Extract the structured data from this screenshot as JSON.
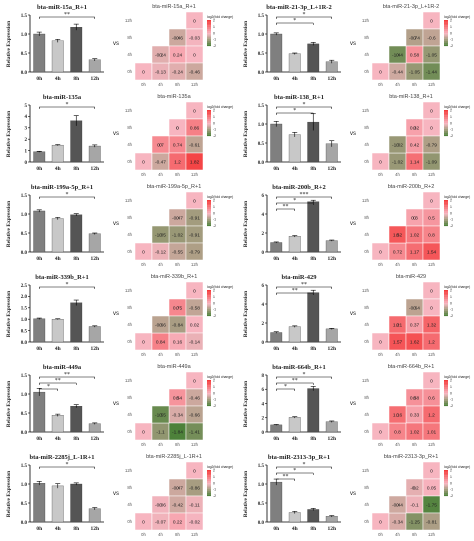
{
  "vs_label": "vs",
  "heat_x_labels": [
    "0h",
    "4h",
    "8h",
    "12h"
  ],
  "heat_y_labels": [
    "12h",
    "8h",
    "4h",
    "0h"
  ],
  "legend_title": "log2(fold change)",
  "legend_ticks": [
    "2",
    "1",
    "0",
    "-1",
    "-2"
  ],
  "colors": {
    "bar_0h": "#7f7f7f",
    "bar_4h": "#c8c8c8",
    "bar_8h": "#555555",
    "bar_12h": "#a6a6a6",
    "heat_pos": "#f43a3a",
    "heat_neg": "#3e7d2e",
    "heat_zero": "#f7b5c0"
  },
  "chart_data": [
    {
      "type": "bar",
      "title": "bta-miR-15a_R+1",
      "categories": [
        "0h",
        "4h",
        "8h",
        "12h"
      ],
      "values": [
        1.0,
        0.82,
        1.18,
        0.32
      ],
      "errors": [
        0.05,
        0.04,
        0.08,
        0.03
      ],
      "ylabel": "Relative Expression",
      "ylim": [
        0.0,
        1.5
      ],
      "yticks": [
        "0.0",
        "0.5",
        "1.0",
        "1.5"
      ],
      "sig": [
        "**"
      ],
      "heatmap": {
        "title": "bta-miR-15a_R+1",
        "cells": [
          [
            -0.46,
            -0.03,
            0.24
          ],
          [
            0.0,
            -0.13,
            -0.24
          ],
          [
            -0.46,
            -0.24
          ]
        ]
      }
    },
    {
      "type": "bar",
      "title": "bta-miR-21-3p_L+1R-2",
      "categories": [
        "0h",
        "4h",
        "8h",
        "12h"
      ],
      "values": [
        1.0,
        0.48,
        0.74,
        0.27
      ],
      "errors": [
        0.03,
        0.02,
        0.04,
        0.04
      ],
      "ylabel": "Relative Expression",
      "ylim": [
        0.0,
        1.5
      ],
      "yticks": [
        "0.0",
        "0.5",
        "1.0",
        "1.5"
      ],
      "sig": [
        "*",
        "*"
      ],
      "heatmap": {
        "title": "bta-miR-21-3p_L+1R-2",
        "cells": [
          [
            -0.74,
            -0.6,
            0.58
          ],
          [
            -1.05,
            -0.44,
            -1.05
          ],
          [
            -1.44,
            -1.44
          ]
        ]
      }
    },
    {
      "type": "bar",
      "title": "bta-miR-135a",
      "categories": [
        "0h",
        "4h",
        "8h",
        "12h"
      ],
      "values": [
        0.9,
        1.48,
        3.62,
        1.4
      ],
      "errors": [
        0.04,
        0.05,
        0.45,
        0.1
      ],
      "ylabel": "Relative Expression",
      "ylim": [
        0,
        5
      ],
      "yticks": [
        "0",
        "1",
        "2",
        "3",
        "4",
        "5"
      ],
      "sig": [
        "*"
      ],
      "heatmap": {
        "title": "bta-miR-135a",
        "cells": [
          [
            0.0,
            0.86,
            0.74
          ],
          [
            -0.61,
            -0.47,
            1.2
          ],
          [
            1.82,
            0.7
          ]
        ]
      }
    },
    {
      "type": "bar",
      "title": "bta-miR-138_R+1",
      "categories": [
        "0h",
        "4h",
        "8h",
        "12h"
      ],
      "values": [
        1.0,
        0.72,
        1.05,
        0.48
      ],
      "errors": [
        0.07,
        0.06,
        0.22,
        0.08
      ],
      "ylabel": "Relative Expression",
      "ylim": [
        0.0,
        1.5
      ],
      "yticks": [
        "0.0",
        "0.5",
        "1.0",
        "1.5"
      ],
      "sig": [
        "*",
        "*"
      ],
      "heatmap": {
        "title": "bta-miR-138_R+1",
        "cells": [
          [
            0.32,
            0.0,
            0.42
          ],
          [
            -0.79,
            -1.02,
            1.14
          ],
          [
            -1.09,
            -1.02
          ]
        ]
      }
    },
    {
      "type": "bar",
      "title": "bta-miR-199a-5p_R+1",
      "categories": [
        "0h",
        "4h",
        "8h",
        "12h"
      ],
      "values": [
        1.08,
        0.88,
        0.98,
        0.48
      ],
      "errors": [
        0.03,
        0.03,
        0.03,
        0.02
      ],
      "ylabel": "Relative Expression",
      "ylim": [
        0.0,
        1.5
      ],
      "yticks": [
        "0.0",
        "0.5",
        "1.0",
        "1.5"
      ],
      "sig": [
        "*"
      ],
      "heatmap": {
        "title": "bta-miR-199a-5p_R+1",
        "cells": [
          [
            -0.47,
            -0.91,
            -1.02
          ],
          [
            -0.91,
            -0.12,
            -0.55
          ],
          [
            -0.79,
            -1.05
          ]
        ]
      }
    },
    {
      "type": "bar",
      "title": "bta-miR-200b_R+2",
      "categories": [
        "0h",
        "4h",
        "8h",
        "12h"
      ],
      "values": [
        1.0,
        1.65,
        5.3,
        1.2
      ],
      "errors": [
        0.06,
        0.08,
        0.15,
        0.06
      ],
      "ylabel": "Relative Expression",
      "ylim": [
        0,
        6
      ],
      "yticks": [
        "0",
        "2",
        "4",
        "6"
      ],
      "sig": [
        "***",
        "*",
        "**"
      ],
      "heatmap": {
        "title": "bta-miR-200b_R+2",
        "cells": [
          [
            0.3,
            0.5,
            1.02
          ],
          [
            0.8,
            0.72,
            1.17
          ],
          [
            1.54,
            1.52
          ]
        ]
      }
    },
    {
      "type": "bar",
      "title": "bta-miR-339b_R+1",
      "categories": [
        "0h",
        "4h",
        "8h",
        "12h"
      ],
      "values": [
        1.02,
        1.0,
        1.72,
        0.68
      ],
      "errors": [
        0.03,
        0.02,
        0.12,
        0.03
      ],
      "ylabel": "Relative Expression",
      "ylim": [
        0.0,
        2.5
      ],
      "yticks": [
        "0.0",
        "0.5",
        "1.0",
        "1.5",
        "2.0",
        "2.5"
      ],
      "sig": [
        "*"
      ],
      "heatmap": {
        "title": "bta-miR-339b_R+1",
        "cells": [
          [
            0.75,
            -0.58,
            -0.84
          ],
          [
            0.02,
            0.84,
            0.16
          ],
          [
            -0.14,
            -0.66
          ]
        ]
      }
    },
    {
      "type": "bar",
      "title": "bta-miR-429",
      "categories": [
        "0h",
        "4h",
        "8h",
        "12h"
      ],
      "values": [
        1.0,
        1.62,
        5.2,
        1.38
      ],
      "errors": [
        0.08,
        0.08,
        0.25,
        0.06
      ],
      "ylabel": "Relative Expression",
      "ylim": [
        0,
        6
      ],
      "yticks": [
        "0",
        "2",
        "4",
        "6"
      ],
      "sig": [
        "**",
        "**"
      ],
      "heatmap": {
        "title": "bta-miR-429",
        "cells": [
          [
            -0.64,
            0.0,
            0.37
          ],
          [
            1.32,
            1.57,
            1.62
          ],
          [
            1.2,
            1.21
          ]
        ]
      }
    },
    {
      "type": "bar",
      "title": "bta-miR-449a",
      "categories": [
        "0h",
        "4h",
        "8h",
        "12h"
      ],
      "values": [
        1.05,
        0.44,
        0.68,
        0.22
      ],
      "errors": [
        0.1,
        0.03,
        0.04,
        0.02
      ],
      "ylabel": "Relative Expression",
      "ylim": [
        0.0,
        1.5
      ],
      "yticks": [
        "0.0",
        "0.5",
        "1.0",
        "1.5"
      ],
      "sig": [
        "**",
        "**",
        "*"
      ],
      "heatmap": {
        "title": "bta-miR-449a",
        "cells": [
          [
            0.54,
            -0.46,
            -0.34
          ],
          [
            -0.66,
            -1.1,
            -1.84
          ],
          [
            -1.41,
            -1.55
          ]
        ]
      }
    },
    {
      "type": "bar",
      "title": "bta-miR-664b_R+1",
      "categories": [
        "0h",
        "4h",
        "8h",
        "12h"
      ],
      "values": [
        1.0,
        2.05,
        6.1,
        1.45
      ],
      "errors": [
        0.06,
        0.1,
        0.3,
        0.1
      ],
      "ylabel": "Relative Expression",
      "ylim": [
        0,
        8
      ],
      "yticks": [
        "0",
        "2",
        "4",
        "6",
        "8"
      ],
      "sig": [
        "*",
        "**",
        "*"
      ],
      "heatmap": {
        "title": "bta-miR-664b_R+1",
        "cells": [
          [
            0.58,
            0.6,
            0.33
          ],
          [
            1.2,
            0.8,
            1.02
          ],
          [
            1.01,
            1.16
          ]
        ]
      }
    },
    {
      "type": "bar",
      "title": "bta-miR-2285j_L-1R+1",
      "categories": [
        "0h",
        "4h",
        "8h",
        "12h"
      ],
      "values": [
        1.02,
        0.95,
        1.0,
        0.35
      ],
      "errors": [
        0.05,
        0.06,
        0.03,
        0.03
      ],
      "ylabel": "Relative Expression",
      "ylim": [
        0.0,
        1.5
      ],
      "yticks": [
        "0.0",
        "0.5",
        "1.0",
        "1.5"
      ],
      "sig": [
        "*"
      ],
      "heatmap": {
        "title": "bta-miR-2285j_L-1R+1",
        "cells": [
          [
            -0.47,
            -0.86,
            -0.42
          ],
          [
            -0.11,
            -0.07,
            0.22
          ],
          [
            -0.02,
            -0.06
          ]
        ]
      }
    },
    {
      "type": "bar",
      "title": "bta-miR-2313-3p_R+1",
      "categories": [
        "0h",
        "4h",
        "8h",
        "12h"
      ],
      "values": [
        1.05,
        0.25,
        0.33,
        0.15
      ],
      "errors": [
        0.08,
        0.03,
        0.03,
        0.02
      ],
      "ylabel": "Relative Expression",
      "ylim": [
        0.0,
        1.5
      ],
      "yticks": [
        "0.0",
        "0.5",
        "1.0",
        "1.5"
      ],
      "sig": [
        "*",
        "*",
        "**"
      ],
      "heatmap": {
        "title": "bta-miR-2313-3p_R+1",
        "cells": [
          [
            -0.2,
            0.05,
            -0.1
          ],
          [
            -1.75,
            -0.34,
            -1.25
          ],
          [
            -0.81,
            -0.44
          ]
        ]
      }
    }
  ]
}
